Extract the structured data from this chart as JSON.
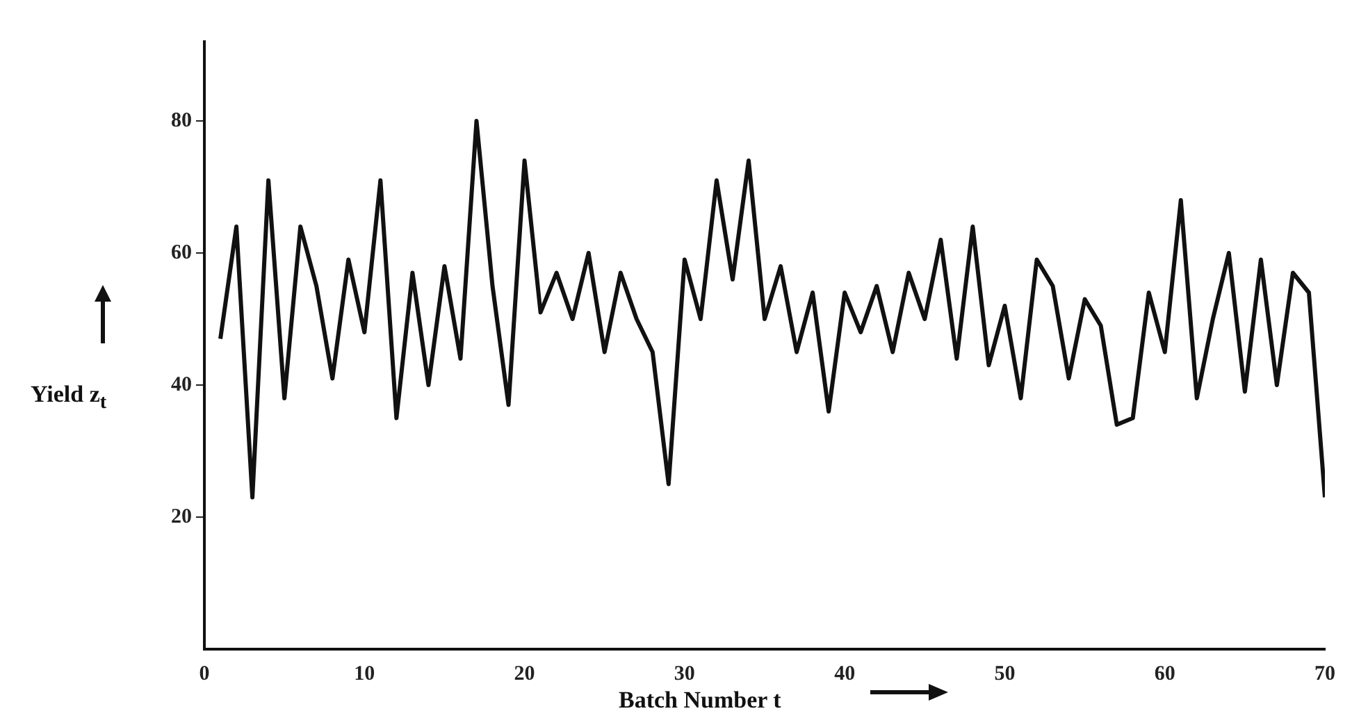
{
  "chart_data": {
    "type": "line",
    "xlabel": "Batch Number t",
    "ylabel": "Yield z$_{t}$",
    "x": [
      1,
      2,
      3,
      4,
      5,
      6,
      7,
      8,
      9,
      10,
      11,
      12,
      13,
      14,
      15,
      16,
      17,
      18,
      19,
      20,
      21,
      22,
      23,
      24,
      25,
      26,
      27,
      28,
      29,
      30,
      31,
      32,
      33,
      34,
      35,
      36,
      37,
      38,
      39,
      40,
      41,
      42,
      43,
      44,
      45,
      46,
      47,
      48,
      49,
      50,
      51,
      52,
      53,
      54,
      55,
      56,
      57,
      58,
      59,
      60,
      61,
      62,
      63,
      64,
      65,
      66,
      67,
      68,
      69,
      70
    ],
    "series": [
      {
        "color": "#111111",
        "values": [
          47,
          64,
          23,
          71,
          38,
          64,
          55,
          41,
          59,
          48,
          71,
          35,
          57,
          40,
          58,
          44,
          80,
          55,
          37,
          74,
          51,
          57,
          50,
          60,
          45,
          57,
          50,
          45,
          25,
          59,
          50,
          71,
          56,
          74,
          50,
          58,
          45,
          54,
          36,
          54,
          48,
          55,
          45,
          57,
          50,
          62,
          44,
          64,
          43,
          52,
          38,
          59,
          55,
          41,
          53,
          49,
          34,
          35,
          54,
          45,
          68,
          38,
          50,
          60,
          39,
          59,
          40,
          57,
          54,
          23
        ]
      }
    ],
    "xlim": [
      0,
      70
    ],
    "xticks": [
      0,
      10,
      20,
      30,
      40,
      50,
      60,
      70
    ],
    "ylim": [
      0,
      92
    ],
    "yticks": [
      20,
      40,
      60,
      80
    ],
    "grid": false,
    "legend": false,
    "marker": "none",
    "line_style": "solid"
  }
}
